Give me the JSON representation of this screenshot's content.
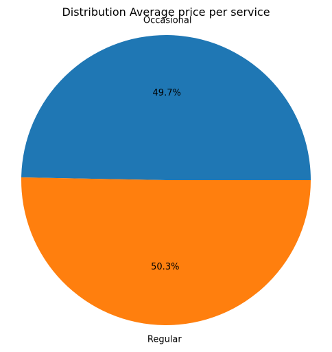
{
  "chart_data": {
    "type": "pie",
    "title": "Distribution Average price per service",
    "labels": [
      "Occasional",
      "Regular"
    ],
    "values": [
      49.7,
      50.3
    ],
    "percent_labels": [
      "49.7%",
      "50.3%"
    ],
    "colors": [
      "#1f77b4",
      "#ff7f0e"
    ],
    "start_angle_deg": 0,
    "direction": "counterclockwise",
    "legend": "none"
  }
}
